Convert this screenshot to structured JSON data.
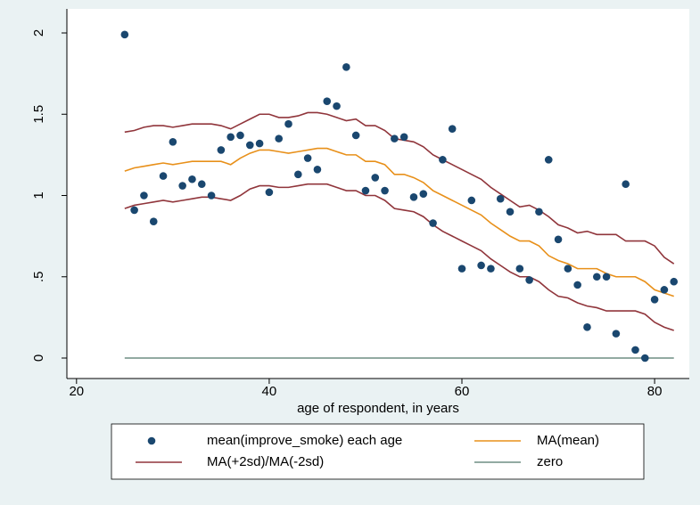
{
  "chart_data": {
    "type": "line",
    "xlabel": "age of respondent, in years",
    "x": [
      25,
      26,
      27,
      28,
      29,
      30,
      31,
      32,
      33,
      34,
      35,
      36,
      37,
      38,
      39,
      40,
      41,
      42,
      43,
      44,
      45,
      46,
      47,
      48,
      49,
      50,
      51,
      52,
      53,
      54,
      55,
      56,
      57,
      58,
      59,
      60,
      61,
      62,
      63,
      64,
      65,
      66,
      67,
      68,
      69,
      70,
      71,
      72,
      73,
      74,
      75,
      76,
      77,
      78,
      79,
      80,
      81,
      82
    ],
    "xlim": [
      19,
      83.6
    ],
    "xticks": [
      20,
      40,
      60,
      80
    ],
    "ylim": [
      -0.126,
      2.148
    ],
    "yticks": [
      0,
      {
        "value": 0.5,
        "label": ".5"
      },
      1,
      1.5,
      2
    ],
    "grid": false,
    "series": [
      {
        "name": "mean(improve_smoke) each age",
        "kind": "scatter",
        "color": "#1a476f",
        "values": [
          1.99,
          0.91,
          1.0,
          0.84,
          1.12,
          1.33,
          1.06,
          1.1,
          1.07,
          1.0,
          1.28,
          1.36,
          1.37,
          1.31,
          1.32,
          1.02,
          1.35,
          1.44,
          1.13,
          1.23,
          1.16,
          1.58,
          1.55,
          1.79,
          1.37,
          1.03,
          1.11,
          1.03,
          1.35,
          1.36,
          0.99,
          1.01,
          0.83,
          1.22,
          1.41,
          0.55,
          0.97,
          0.57,
          0.55,
          0.98,
          0.9,
          0.55,
          0.48,
          0.9,
          1.22,
          0.73,
          0.55,
          0.45,
          0.19,
          0.5,
          0.5,
          0.15,
          1.07,
          0.05,
          0.0,
          0.36,
          0.42,
          0.47
        ]
      },
      {
        "name": "MA(mean)",
        "kind": "line",
        "color": "#e8901a",
        "values": [
          1.15,
          1.17,
          1.18,
          1.19,
          1.2,
          1.19,
          1.2,
          1.21,
          1.21,
          1.21,
          1.21,
          1.19,
          1.23,
          1.26,
          1.28,
          1.28,
          1.27,
          1.26,
          1.27,
          1.28,
          1.29,
          1.29,
          1.27,
          1.25,
          1.25,
          1.21,
          1.21,
          1.19,
          1.13,
          1.13,
          1.11,
          1.08,
          1.03,
          1.0,
          0.97,
          0.94,
          0.91,
          0.88,
          0.83,
          0.79,
          0.75,
          0.72,
          0.72,
          0.69,
          0.63,
          0.6,
          0.58,
          0.55,
          0.55,
          0.55,
          0.52,
          0.5,
          0.5,
          0.5,
          0.47,
          0.42,
          0.4,
          0.38
        ]
      },
      {
        "name": "MA(+2sd)/MA(-2sd)",
        "kind": "band-lines",
        "color": "#90353b",
        "values": [
          1.39,
          1.4,
          1.42,
          1.43,
          1.43,
          1.42,
          1.43,
          1.44,
          1.44,
          1.44,
          1.43,
          1.41,
          1.44,
          1.47,
          1.5,
          1.5,
          1.48,
          1.48,
          1.49,
          1.51,
          1.51,
          1.5,
          1.48,
          1.46,
          1.47,
          1.43,
          1.43,
          1.4,
          1.35,
          1.34,
          1.33,
          1.3,
          1.25,
          1.22,
          1.19,
          1.16,
          1.13,
          1.1,
          1.05,
          1.01,
          0.97,
          0.93,
          0.94,
          0.91,
          0.87,
          0.82,
          0.8,
          0.77,
          0.78,
          0.76,
          0.76,
          0.76,
          0.72,
          0.72,
          0.72,
          0.69,
          0.62,
          0.58
        ],
        "lower_values": [
          0.92,
          0.94,
          0.95,
          0.96,
          0.97,
          0.96,
          0.97,
          0.98,
          0.99,
          0.99,
          0.98,
          0.97,
          1.0,
          1.04,
          1.06,
          1.06,
          1.05,
          1.05,
          1.06,
          1.07,
          1.07,
          1.07,
          1.05,
          1.03,
          1.03,
          1.0,
          1.0,
          0.97,
          0.92,
          0.91,
          0.9,
          0.87,
          0.82,
          0.78,
          0.75,
          0.72,
          0.69,
          0.66,
          0.61,
          0.57,
          0.53,
          0.5,
          0.5,
          0.47,
          0.42,
          0.38,
          0.37,
          0.34,
          0.32,
          0.31,
          0.29,
          0.29,
          0.29,
          0.29,
          0.27,
          0.22,
          0.19,
          0.17
        ]
      },
      {
        "name": "zero",
        "kind": "line",
        "color": "#6e8e84",
        "values": [
          0,
          0,
          0,
          0,
          0,
          0,
          0,
          0,
          0,
          0,
          0,
          0,
          0,
          0,
          0,
          0,
          0,
          0,
          0,
          0,
          0,
          0,
          0,
          0,
          0,
          0,
          0,
          0,
          0,
          0,
          0,
          0,
          0,
          0,
          0,
          0,
          0,
          0,
          0,
          0,
          0,
          0,
          0,
          0,
          0,
          0,
          0,
          0,
          0,
          0,
          0,
          0,
          0,
          0,
          0,
          0,
          0,
          0
        ]
      }
    ]
  }
}
